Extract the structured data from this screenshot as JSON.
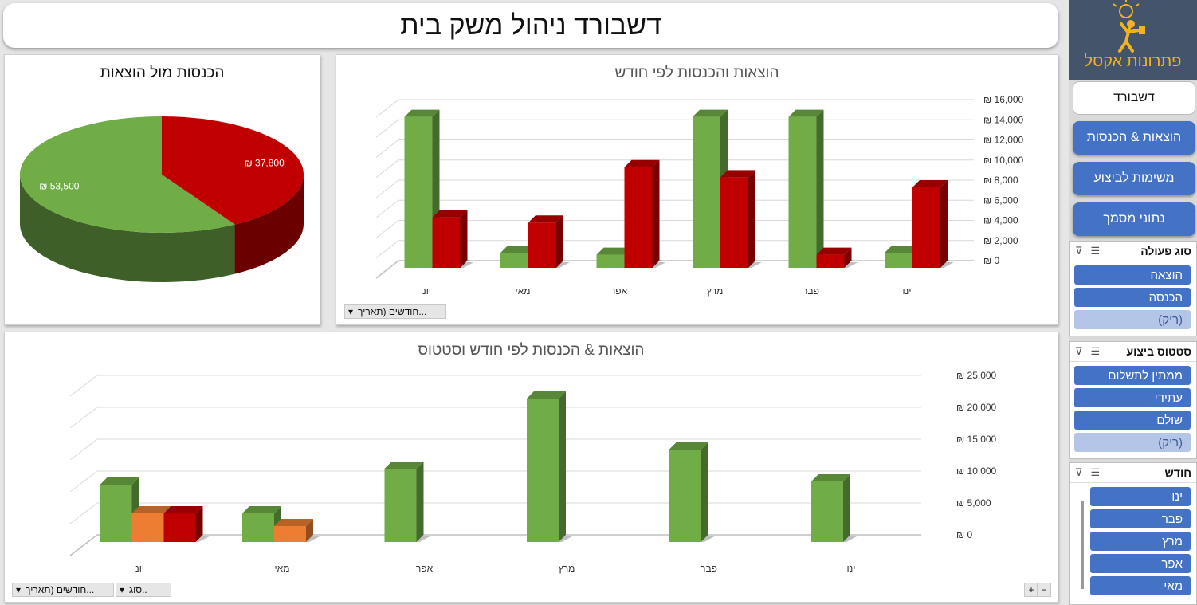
{
  "header": {
    "title": "דשבורד ניהול משק בית"
  },
  "sidebar": {
    "logo_text": "פתרונות אקסל",
    "nav": [
      {
        "label": "דשבורד",
        "active": true
      },
      {
        "label": "הוצאות & הכנסות",
        "active": false
      },
      {
        "label": "משימות לביצוע",
        "active": false
      },
      {
        "label": "נתוני מסמך",
        "active": false
      }
    ],
    "slicers": [
      {
        "title": "סוג פעולה",
        "items": [
          {
            "label": "הוצאה",
            "selected": true
          },
          {
            "label": "הכנסה",
            "selected": true
          },
          {
            "label": "(ריק)",
            "selected": false
          }
        ]
      },
      {
        "title": "סטטוס ביצוע",
        "items": [
          {
            "label": "ממתין לתשלום",
            "selected": true
          },
          {
            "label": "עתידי",
            "selected": true
          },
          {
            "label": "שולם",
            "selected": true
          },
          {
            "label": "(ריק)",
            "selected": false
          }
        ]
      },
      {
        "title": "חודש",
        "items": [
          {
            "label": "ינו",
            "selected": true
          },
          {
            "label": "פבר",
            "selected": true
          },
          {
            "label": "מרץ",
            "selected": true
          },
          {
            "label": "אפר",
            "selected": true
          },
          {
            "label": "מאי",
            "selected": true
          }
        ]
      }
    ]
  },
  "pie_panel": {
    "title": "הכנסות מול הוצאות"
  },
  "bar_panel": {
    "title": "הוצאות והכנסות לפי חודש",
    "filter_label": "חודשים (תאריך..."
  },
  "bottom_panel": {
    "title": "הוצאות & הכנסות לפי חודש וסטטוס",
    "filter_label_1": "חודשים (תאריך...",
    "filter_label_2": "סוג..",
    "zoom_in": "+",
    "zoom_out": "−"
  },
  "colors": {
    "income": "#70ad47",
    "expense": "#c00000",
    "pending": "#ed7d31",
    "accent": "#4472c4"
  },
  "chart_data": [
    {
      "type": "pie",
      "title": "הכנסות מול הוצאות",
      "slices": [
        {
          "value": 37800,
          "label": "₪ 37,800",
          "color": "#c00000"
        },
        {
          "value": 53500,
          "label": "₪ 53,500",
          "color": "#70ad47"
        }
      ]
    },
    {
      "type": "bar",
      "title": "הוצאות והכנסות לפי חודש",
      "categories": [
        "ינו",
        "פבר",
        "מרץ",
        "אפר",
        "מאי",
        "יונ"
      ],
      "series": [
        {
          "color": "#70ad47",
          "values": [
            1500,
            15000,
            15000,
            1300,
            1500,
            15000
          ]
        },
        {
          "color": "#c00000",
          "values": [
            8000,
            1300,
            9000,
            10000,
            4500,
            5000
          ]
        }
      ],
      "ytick_labels": [
        "₪ 0",
        "₪ 2,000",
        "₪ 4,000",
        "₪ 6,000",
        "₪ 8,000",
        "₪ 10,000",
        "₪ 12,000",
        "₪ 14,000",
        "₪ 16,000"
      ],
      "ylim": [
        0,
        16000
      ]
    },
    {
      "type": "bar",
      "title": "הוצאות & הכנסות לפי חודש וסטטוס",
      "categories": [
        "ינו",
        "פבר",
        "מרץ",
        "אפר",
        "מאי",
        "יונ"
      ],
      "series": [
        {
          "color": "#70ad47",
          "values": [
            9500,
            14500,
            22500,
            11500,
            4500,
            9000
          ]
        },
        {
          "color": "#ed7d31",
          "values": [
            0,
            0,
            0,
            0,
            2500,
            4500
          ]
        },
        {
          "color": "#c00000",
          "values": [
            0,
            0,
            0,
            0,
            0,
            4500
          ]
        }
      ],
      "ytick_labels": [
        "₪ 0",
        "₪ 5,000",
        "₪ 10,000",
        "₪ 15,000",
        "₪ 20,000",
        "₪ 25,000"
      ],
      "ylim": [
        0,
        25000
      ]
    }
  ]
}
